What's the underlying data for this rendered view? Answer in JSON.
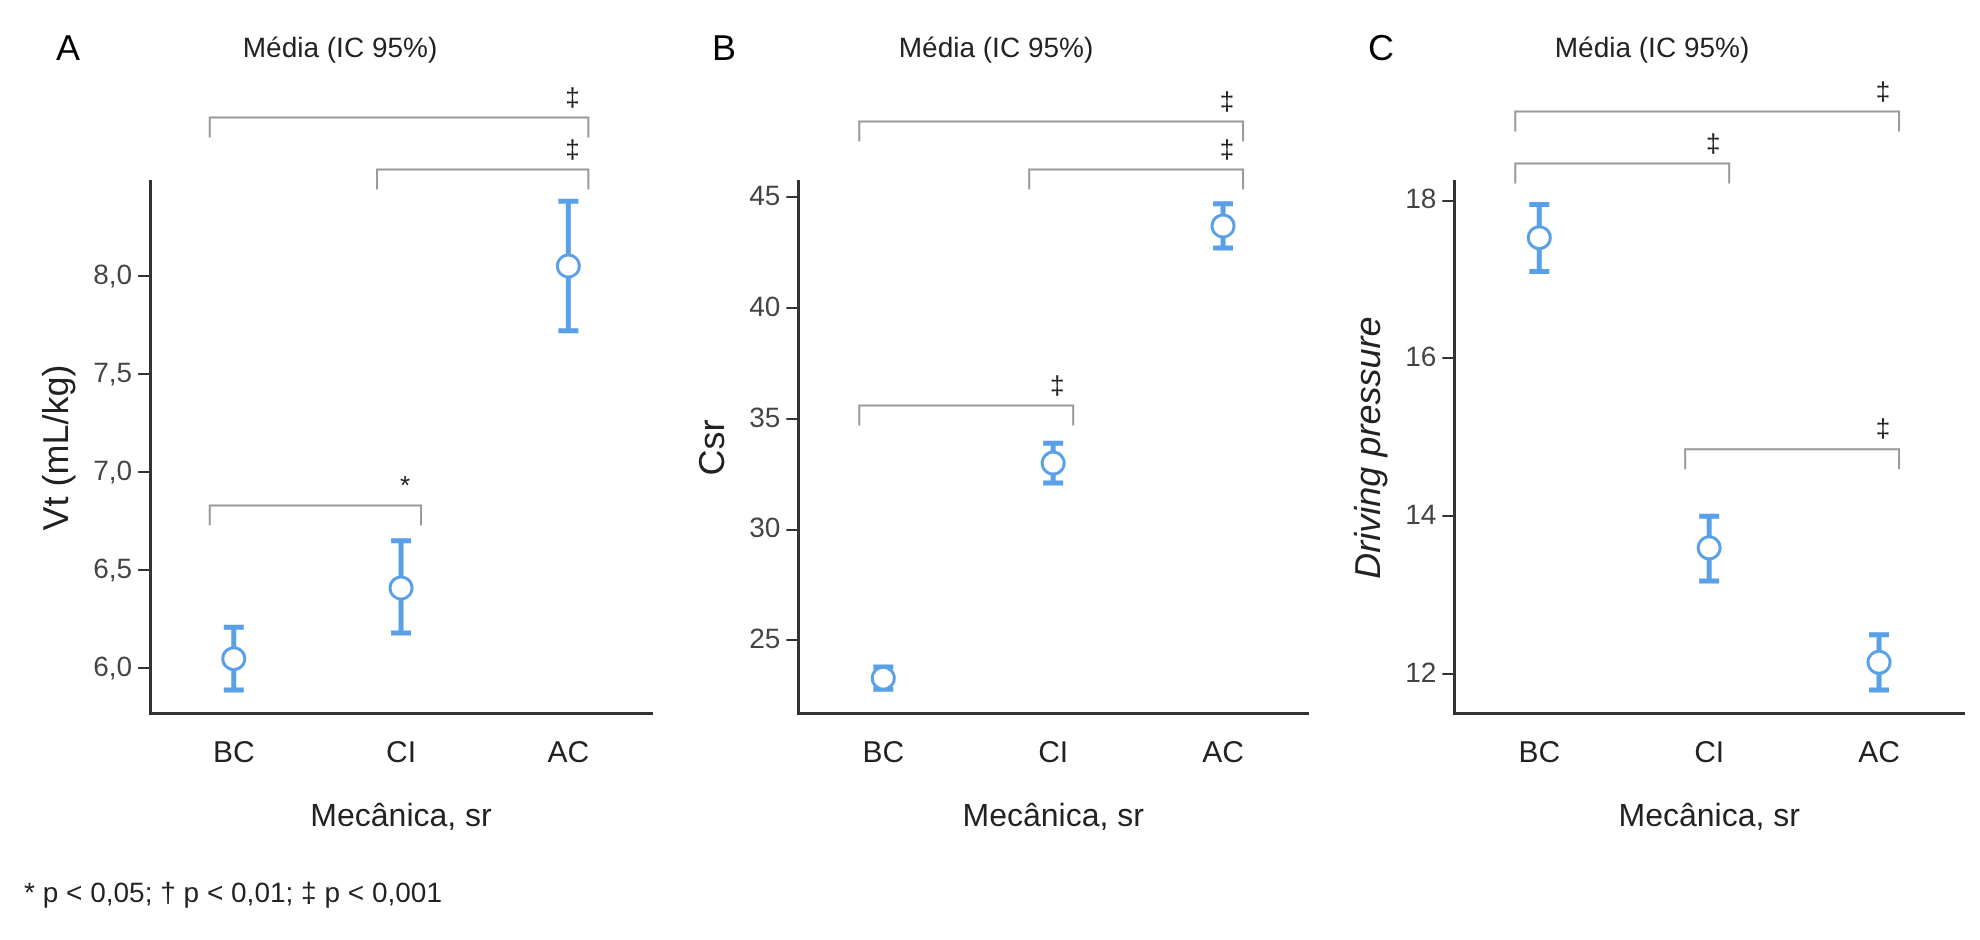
{
  "chart_data": [
    {
      "type": "scatter",
      "title": "Média (IC 95%)",
      "xlabel": "Mecânica, sr",
      "ylabel": "Vt (mL/kg)",
      "categories": [
        "BC",
        "CI",
        "AC"
      ],
      "values": [
        6.05,
        6.41,
        8.05
      ],
      "errors": [
        [
          5.89,
          6.21
        ],
        [
          6.18,
          6.65
        ],
        [
          7.72,
          8.38
        ]
      ],
      "color": "#5aa0e8",
      "marker": "circle",
      "ylim": [
        5.77,
        8.48
      ],
      "yticks": [
        {
          "value": 6,
          "label": "6,0"
        },
        {
          "value": 6.5,
          "label": "6,5"
        },
        {
          "value": 7,
          "label": "7,0"
        },
        {
          "value": 7.5,
          "label": "7,5"
        },
        {
          "value": 8,
          "label": "8,0"
        }
      ],
      "grid": false,
      "legend": false,
      "annotations": [
        "A",
        "‡",
        "‡",
        "*",
        "* p < 0,05; † p < 0,01; ‡ p < 0,001"
      ]
    },
    {
      "type": "scatter",
      "title": "Média (IC 95%)",
      "xlabel": "Mecânica, sr",
      "ylabel": "Csr",
      "categories": [
        "BC",
        "CI",
        "AC"
      ],
      "values": [
        23.3,
        33.0,
        43.7
      ],
      "errors": [
        [
          22.8,
          23.8
        ],
        [
          32.1,
          33.9
        ],
        [
          42.7,
          44.7
        ]
      ],
      "color": "#5aa0e8",
      "marker": "circle",
      "ylim": [
        21.7,
        45.7
      ],
      "yticks": [
        25,
        30,
        35,
        40,
        45
      ],
      "grid": false,
      "legend": false,
      "annotations": [
        "B",
        "‡",
        "‡",
        "‡"
      ]
    },
    {
      "type": "scatter",
      "title": "Média (IC 95%)",
      "xlabel": "Mecânica, sr",
      "ylabel": "Driving pressure",
      "categories": [
        "BC",
        "CI",
        "AC"
      ],
      "values": [
        17.53,
        13.6,
        12.15
      ],
      "errors": [
        [
          17.1,
          17.95
        ],
        [
          13.18,
          14.0
        ],
        [
          11.8,
          12.5
        ]
      ],
      "color": "#5aa0e8",
      "marker": "circle",
      "ylim": [
        11.5,
        18.24
      ],
      "yticks": [
        12,
        14,
        16,
        18
      ],
      "grid": false,
      "legend": false,
      "annotations": [
        "C",
        "‡",
        "‡",
        "‡"
      ]
    }
  ]
}
